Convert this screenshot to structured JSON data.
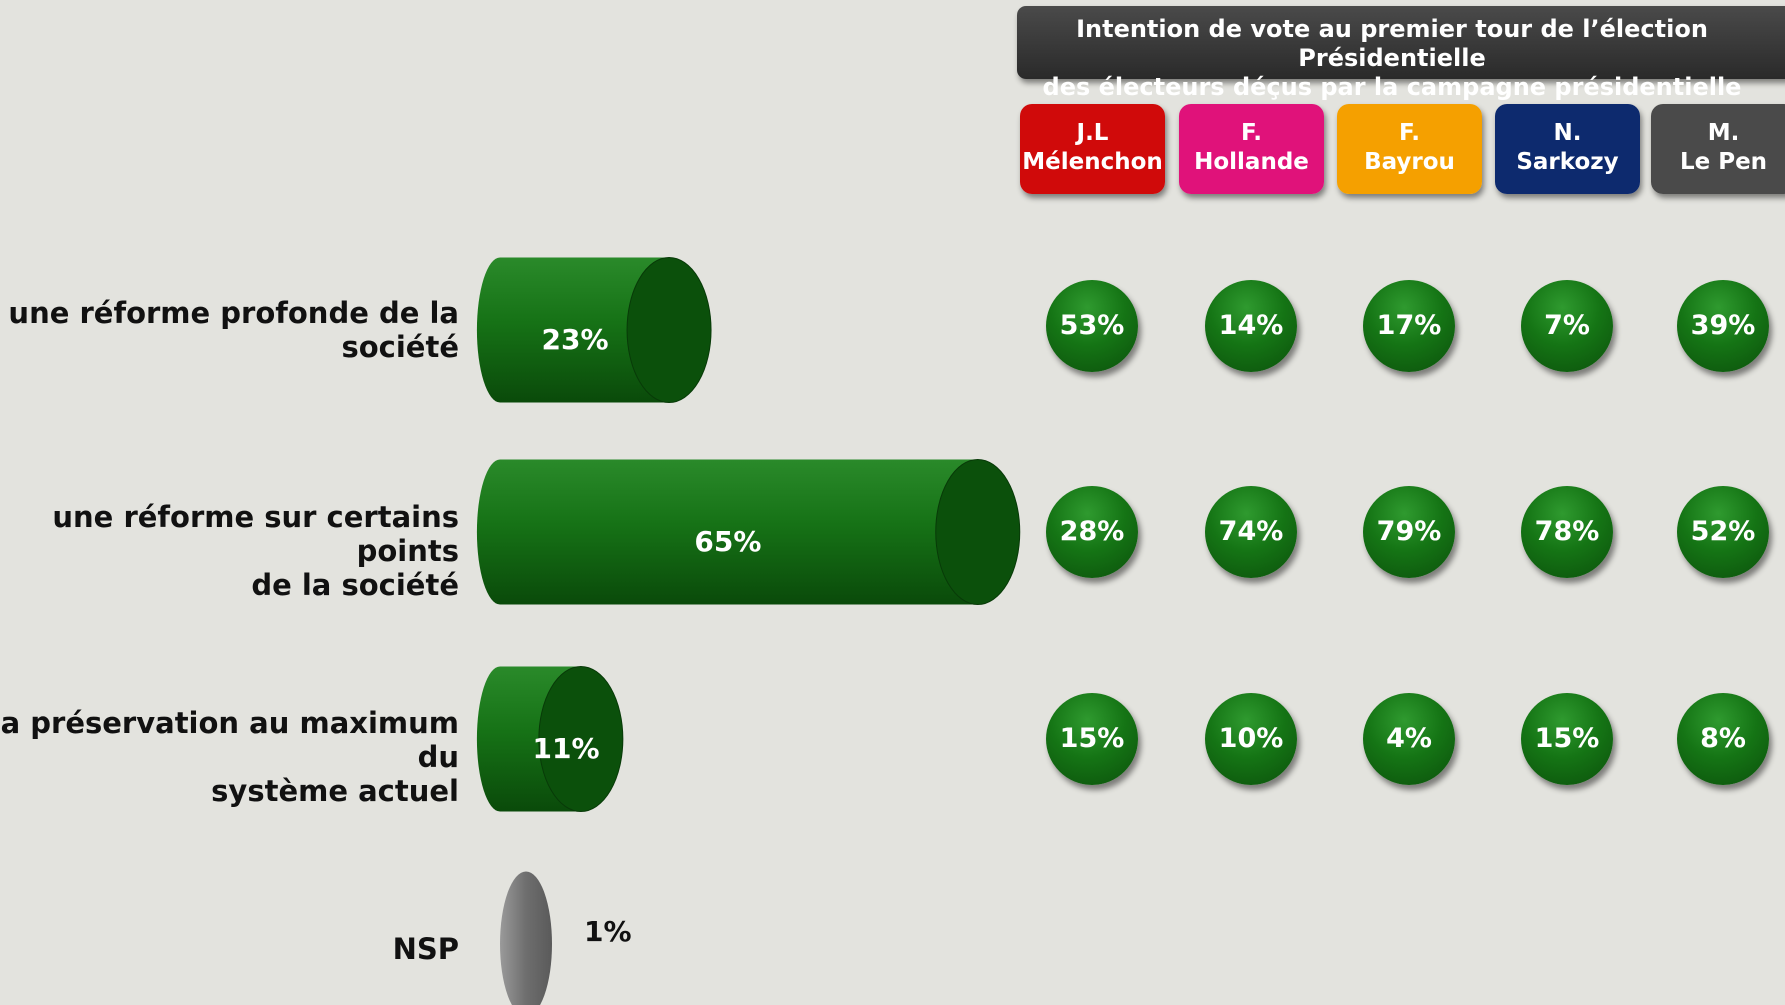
{
  "header": {
    "line1": "Intention de vote au premier tour de l’élection Présidentielle",
    "line2": "des électeurs déçus par la campagne présidentielle"
  },
  "candidates": [
    {
      "line1": "J.L",
      "line2": "Mélenchon",
      "color": "#d00a0a"
    },
    {
      "line1": "F.",
      "line2": "Hollande",
      "color": "#e0127a"
    },
    {
      "line1": "F.",
      "line2": "Bayrou",
      "color": "#f5a000"
    },
    {
      "line1": "N.",
      "line2": "Sarkozy",
      "color": "#0d2a6e"
    },
    {
      "line1": "M.",
      "line2": "Le Pen",
      "color": "#4a4a4a"
    }
  ],
  "chart_data": {
    "type": "bar",
    "categories": [
      "une réforme profonde de la société",
      "une réforme sur certains points de la société",
      "la préservation au maximum du système actuel",
      "NSP"
    ],
    "category_lines": [
      [
        "une réforme profonde de la",
        "société"
      ],
      [
        "une réforme sur certains points",
        "de la société"
      ],
      [
        "la préservation au maximum du",
        "système actuel"
      ],
      [
        "NSP"
      ]
    ],
    "values": [
      23,
      65,
      11,
      1
    ],
    "value_labels": [
      "23%",
      "65%",
      "11%",
      "1%"
    ],
    "bar_colors": [
      "#157515",
      "#157515",
      "#157515",
      "#7a7a7a"
    ],
    "candidate_breakdown": [
      {
        "candidate": "J.L Mélenchon",
        "values": [
          53,
          28,
          15
        ],
        "labels": [
          "53%",
          "28%",
          "15%"
        ]
      },
      {
        "candidate": "F. Hollande",
        "values": [
          14,
          74,
          10
        ],
        "labels": [
          "14%",
          "74%",
          "10%"
        ]
      },
      {
        "candidate": "F. Bayrou",
        "values": [
          17,
          79,
          4
        ],
        "labels": [
          "17%",
          "79%",
          "4%"
        ]
      },
      {
        "candidate": "N. Sarkozy",
        "values": [
          7,
          78,
          15
        ],
        "labels": [
          "7%",
          "78%",
          "15%"
        ]
      },
      {
        "candidate": "M. Le Pen",
        "values": [
          39,
          52,
          8
        ],
        "labels": [
          "39%",
          "52%",
          "8%"
        ]
      }
    ]
  }
}
